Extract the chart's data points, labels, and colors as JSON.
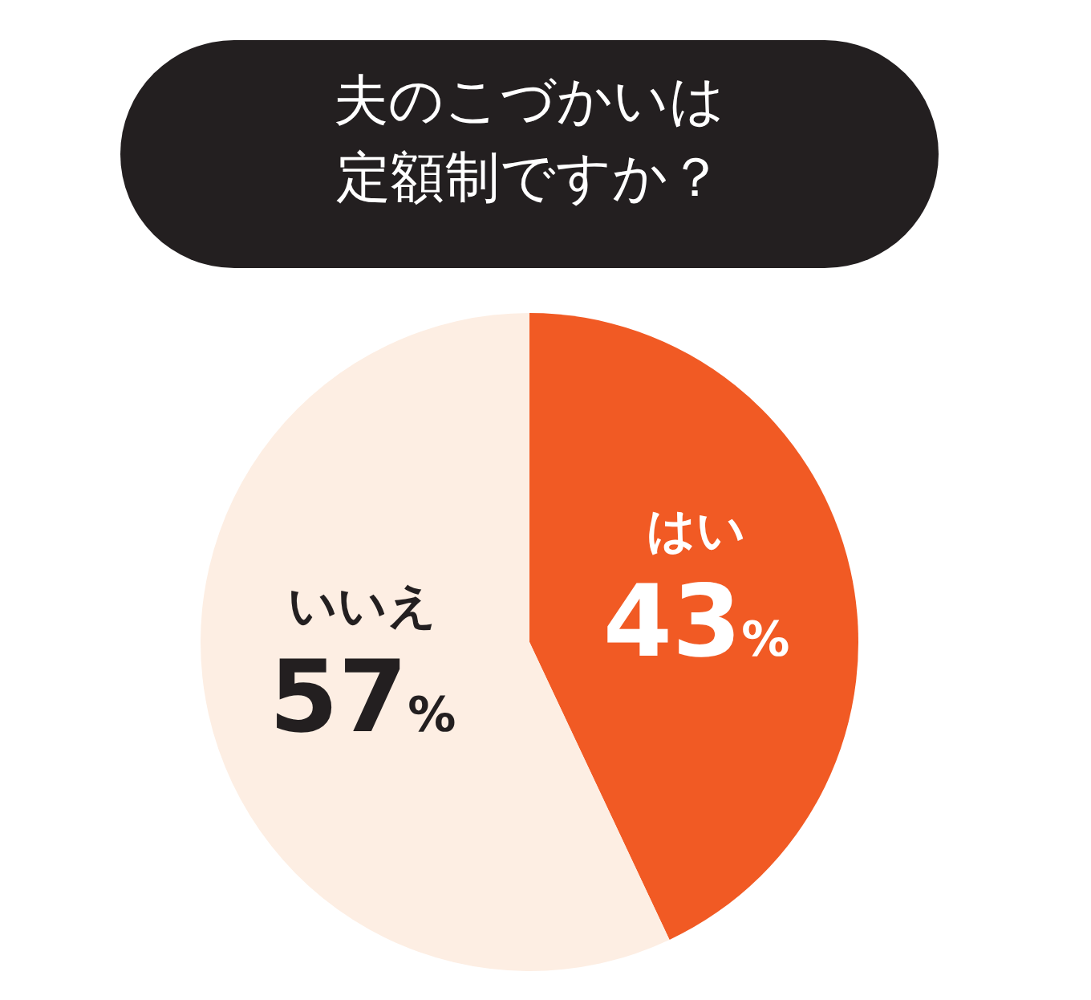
{
  "chart_data": {
    "type": "pie",
    "title": "夫のこづかいは定額制ですか？",
    "categories": [
      "はい",
      "いいえ"
    ],
    "values": [
      43,
      57
    ],
    "colors": [
      "#f15a24",
      "#fdeee3"
    ],
    "value_labels": [
      "43%",
      "57%"
    ],
    "legend": false
  }
}
